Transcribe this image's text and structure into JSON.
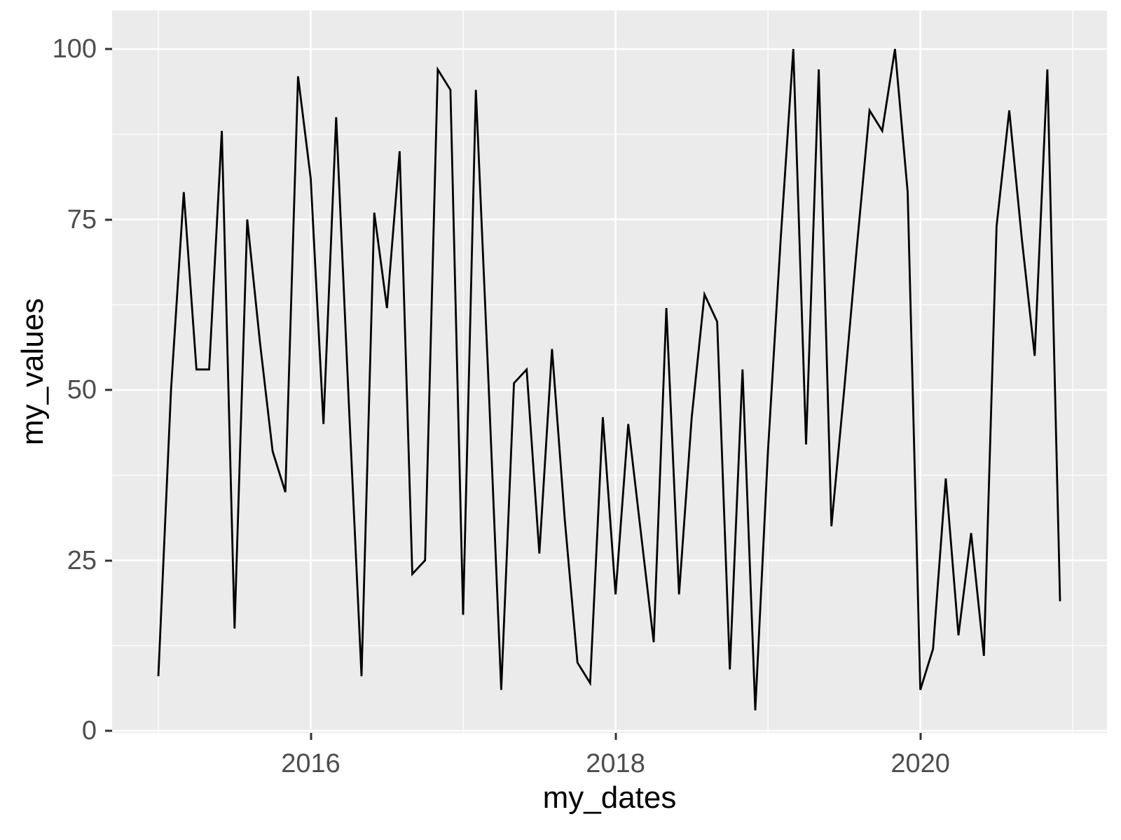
{
  "chart_data": {
    "type": "line",
    "title": "",
    "xlabel": "my_dates",
    "ylabel": "my_values",
    "x": [
      "2015-01",
      "2015-02",
      "2015-03",
      "2015-04",
      "2015-05",
      "2015-06",
      "2015-07",
      "2015-08",
      "2015-09",
      "2015-10",
      "2015-11",
      "2015-12",
      "2016-01",
      "2016-02",
      "2016-03",
      "2016-04",
      "2016-05",
      "2016-06",
      "2016-07",
      "2016-08",
      "2016-09",
      "2016-10",
      "2016-11",
      "2016-12",
      "2017-01",
      "2017-02",
      "2017-03",
      "2017-04",
      "2017-05",
      "2017-06",
      "2017-07",
      "2017-08",
      "2017-09",
      "2017-10",
      "2017-11",
      "2017-12",
      "2018-01",
      "2018-02",
      "2018-03",
      "2018-04",
      "2018-05",
      "2018-06",
      "2018-07",
      "2018-08",
      "2018-09",
      "2018-10",
      "2018-11",
      "2018-12",
      "2019-01",
      "2019-02",
      "2019-03",
      "2019-04",
      "2019-05",
      "2019-06",
      "2019-07",
      "2019-08",
      "2019-09",
      "2019-10",
      "2019-11",
      "2019-12",
      "2020-01",
      "2020-02",
      "2020-03",
      "2020-04",
      "2020-05",
      "2020-06",
      "2020-07",
      "2020-08",
      "2020-09",
      "2020-10",
      "2020-11",
      "2020-12"
    ],
    "series": [
      {
        "name": "my_values",
        "values": [
          8,
          50,
          79,
          53,
          53,
          88,
          15,
          75,
          57,
          41,
          35,
          96,
          81,
          45,
          90,
          48,
          8,
          76,
          62,
          85,
          23,
          25,
          97,
          94,
          17,
          94,
          51,
          6,
          51,
          53,
          26,
          56,
          31,
          10,
          7,
          46,
          20,
          45,
          29,
          13,
          62,
          20,
          46,
          64,
          60,
          9,
          53,
          3,
          41,
          72,
          100,
          42,
          97,
          30,
          50,
          71,
          91,
          88,
          100,
          79,
          6,
          12,
          37,
          14,
          29,
          11,
          74,
          91,
          72,
          55,
          97,
          19
        ]
      }
    ],
    "ylim": [
      0,
      100
    ],
    "y_ticks": [
      0,
      25,
      50,
      75,
      100
    ],
    "y_tick_labels": [
      "0",
      "25",
      "50",
      "75",
      "100"
    ],
    "x_tick_years": [
      2016,
      2018,
      2020
    ],
    "x_tick_labels": [
      "2016",
      "2018",
      "2020"
    ],
    "grid": "major and minor white gridlines on grey panel",
    "legend": "none",
    "colors": {
      "line": "#000000",
      "panel_bg": "#EBEBEB",
      "grid": "#FFFFFF",
      "tick_text": "#4D4D4D",
      "tick_mark": "#333333",
      "axis_title": "#000000",
      "page_bg": "#FFFFFF"
    }
  }
}
